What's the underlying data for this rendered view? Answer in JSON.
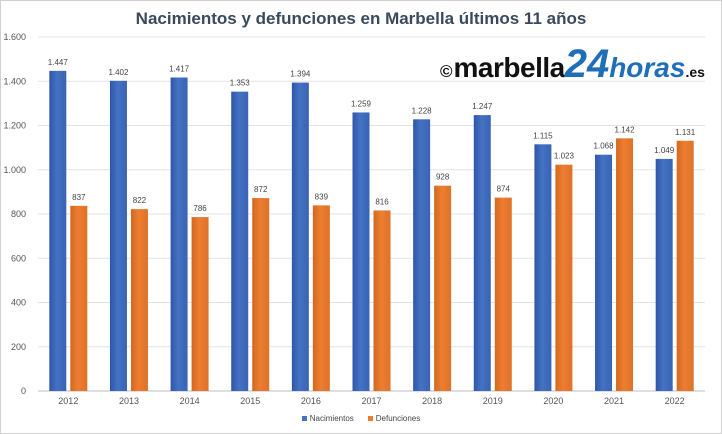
{
  "chart_data": {
    "type": "bar",
    "title": "Nacimientos y defunciones  en Marbella  últimos  11 años",
    "categories": [
      "2012",
      "2013",
      "2014",
      "2015",
      "2016",
      "2017",
      "2018",
      "2019",
      "2020",
      "2021",
      "2022"
    ],
    "series": [
      {
        "name": "Nacimientos",
        "color": "#4472c4",
        "values": [
          1447,
          1402,
          1417,
          1353,
          1394,
          1259,
          1228,
          1247,
          1115,
          1068,
          1049
        ],
        "labels": [
          "1.447",
          "1.402",
          "1.417",
          "1.353",
          "1.394",
          "1.259",
          "1.228",
          "1.247",
          "1.115",
          "1.068",
          "1.049"
        ]
      },
      {
        "name": "Defunciones",
        "color": "#ed7d31",
        "values": [
          837,
          822,
          786,
          872,
          839,
          816,
          928,
          874,
          1023,
          1142,
          1131
        ],
        "labels": [
          "837",
          "822",
          "786",
          "872",
          "839",
          "816",
          "928",
          "874",
          "1.023",
          "1.142",
          "1.131"
        ]
      }
    ],
    "ylim": [
      0,
      1600
    ],
    "yticks": [
      0,
      200,
      400,
      600,
      800,
      1000,
      1200,
      1400,
      1600
    ],
    "ytick_labels": [
      "0",
      "200",
      "400",
      "600",
      "800",
      "1.000",
      "1.200",
      "1.400",
      "1.600"
    ],
    "grid": true,
    "legend_position": "bottom"
  },
  "watermark": {
    "copyright": "©",
    "brand": "marbella",
    "number": "24",
    "suffix": "horas",
    "tld": ".es"
  }
}
